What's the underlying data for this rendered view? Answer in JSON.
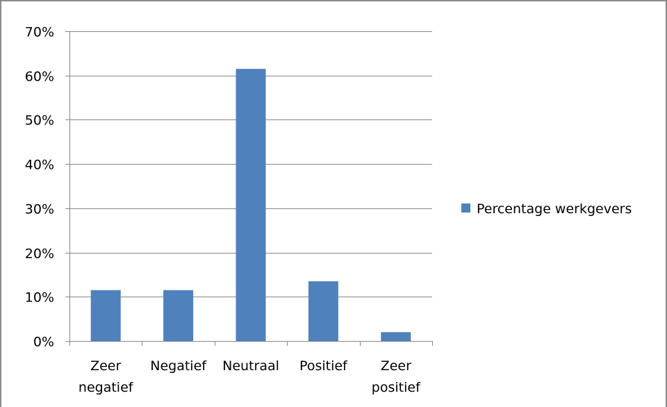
{
  "chart_data": {
    "type": "bar",
    "categories": [
      "Zeer negatief",
      "Negatief",
      "Neutraal",
      "Positief",
      "Zeer positief"
    ],
    "category_lines": [
      [
        "Zeer",
        "negatief"
      ],
      [
        "Negatief"
      ],
      [
        "Neutraal"
      ],
      [
        "Positief"
      ],
      [
        "Zeer",
        "positief"
      ]
    ],
    "series": [
      {
        "name": "Percentage werkgevers",
        "values": [
          11.5,
          11.5,
          61.5,
          13.5,
          2.0
        ],
        "color": "#4f81bd"
      }
    ],
    "ylim": [
      0,
      70
    ],
    "yticks": [
      0,
      10,
      20,
      30,
      40,
      50,
      60,
      70
    ],
    "ytick_labels": [
      "0%",
      "10%",
      "20%",
      "30%",
      "40%",
      "50%",
      "60%",
      "70%"
    ],
    "grid": true,
    "gridline_color": "#868686",
    "legend_position": "right",
    "title": "",
    "xlabel": "",
    "ylabel": ""
  }
}
